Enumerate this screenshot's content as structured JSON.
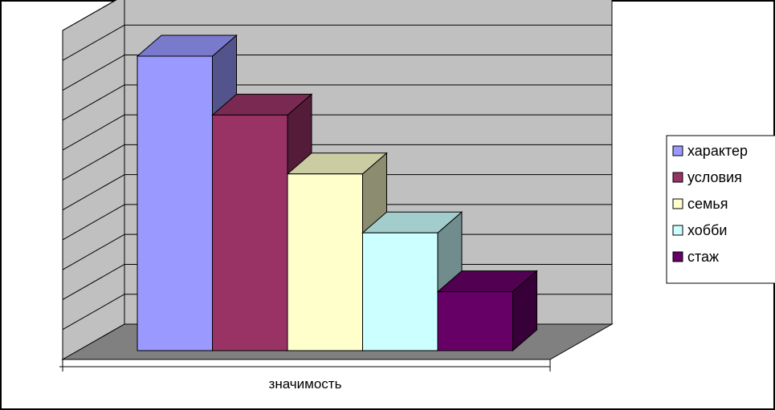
{
  "chart_data": {
    "type": "bar",
    "categories": [
      "значимость"
    ],
    "series": [
      {
        "name": "характер",
        "values": [
          10
        ],
        "color": "#9999ff"
      },
      {
        "name": "условия",
        "values": [
          8
        ],
        "color": "#993366"
      },
      {
        "name": "семья",
        "values": [
          6
        ],
        "color": "#ffffcc"
      },
      {
        "name": "хобби",
        "values": [
          4
        ],
        "color": "#ccffff"
      },
      {
        "name": "стаж",
        "values": [
          2
        ],
        "color": "#660066"
      }
    ],
    "title": "",
    "xlabel": "",
    "ylabel": "",
    "ylim": [
      0,
      11
    ],
    "grid": true,
    "legend_position": "right",
    "style": "3d-column"
  },
  "colors": {
    "wall": "#c0c0c0",
    "floor": "#808080",
    "gridline": "#000000"
  }
}
